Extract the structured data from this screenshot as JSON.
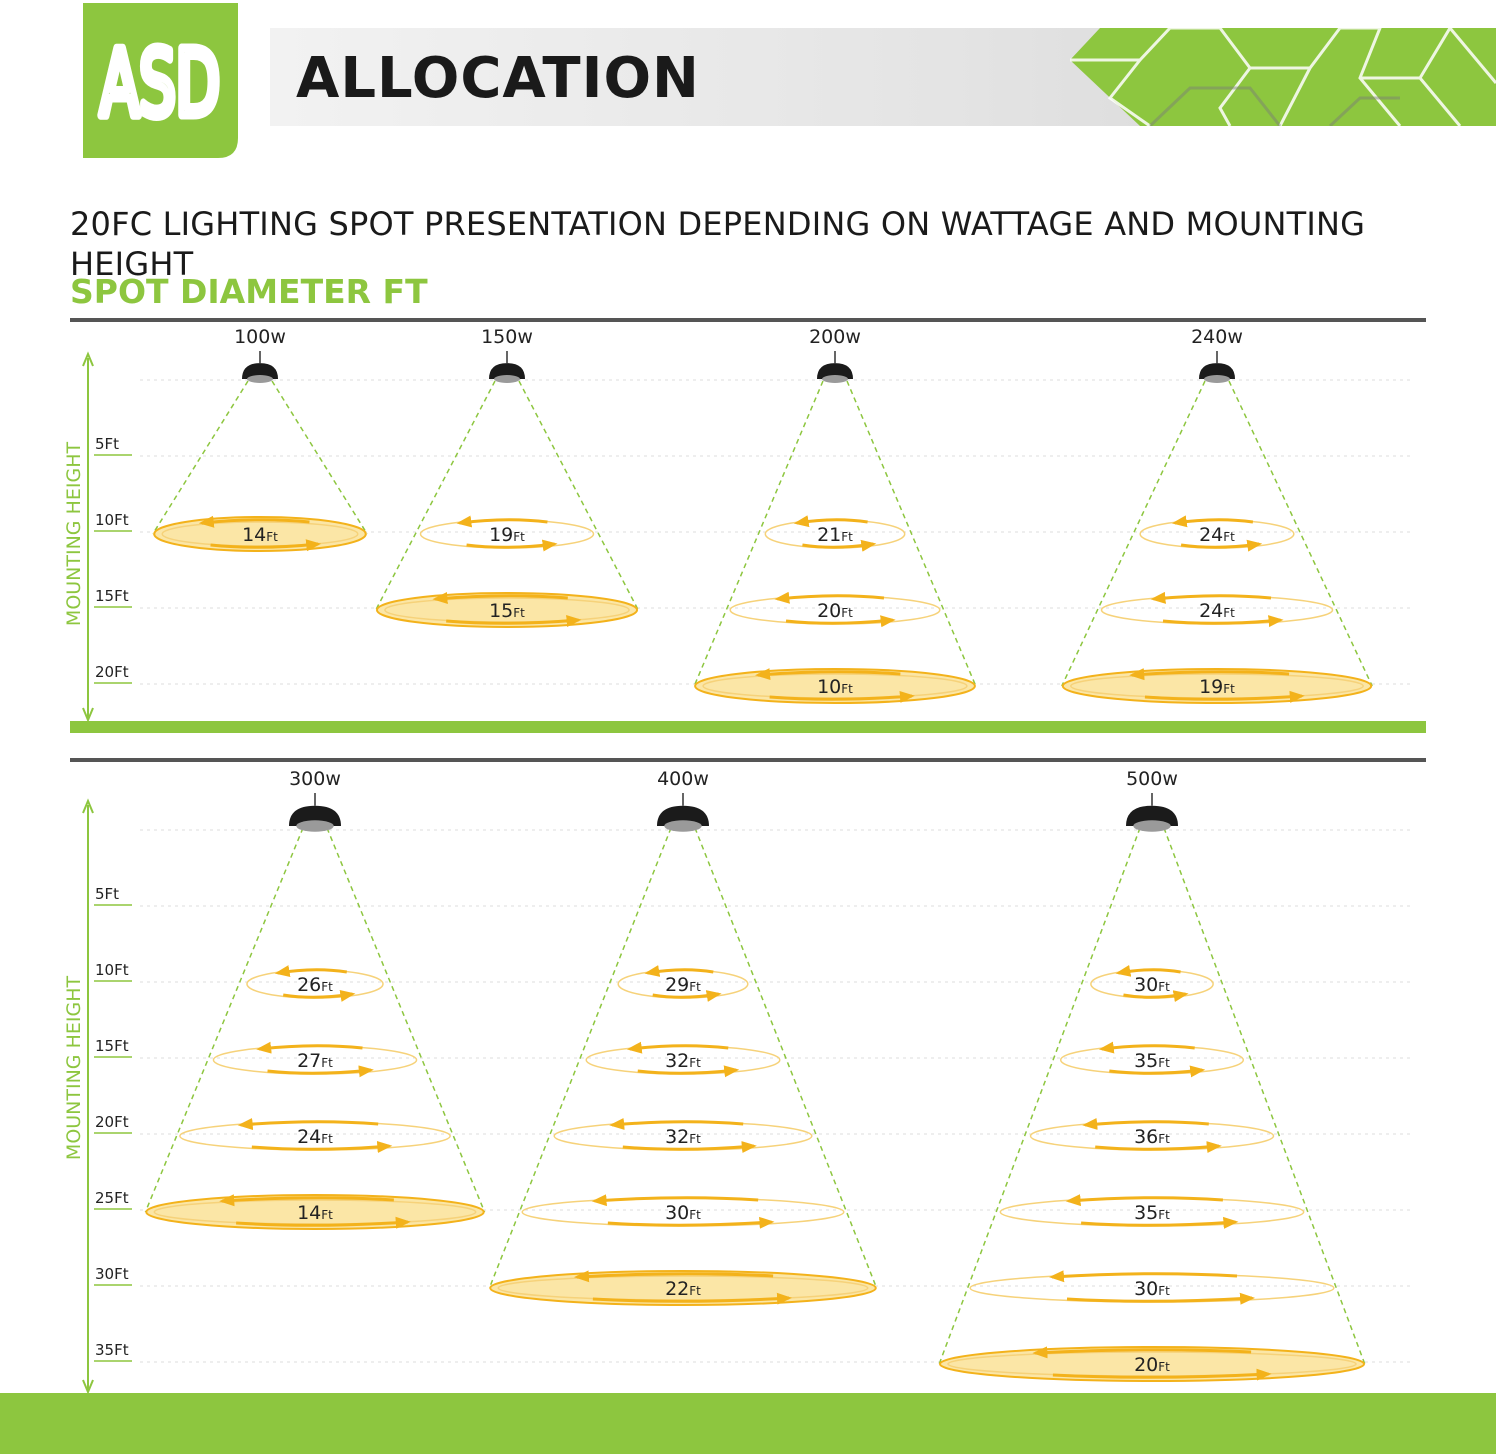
{
  "brand": {
    "logo_text": "ASD",
    "color": "#8dc63f"
  },
  "header": {
    "title": "ALLOCATION"
  },
  "subtitle": "20FC LIGHTING SPOT PRESENTATION DEPENDING  ON WATTAGE AND MOUNTING HEIGHT",
  "section_label": "SPOT DIAMETER FT",
  "unit_suffix": "Ft",
  "colors": {
    "accent": "#8dc63f",
    "spot": "#f3b21b",
    "spot_fill": "#fbe6a6",
    "divider": "#555555"
  },
  "panels": [
    {
      "axis_title": "MOUNTING HEIGHT",
      "height_ticks": [
        "5Ft",
        "10Ft",
        "15Ft",
        "20Ft"
      ],
      "lights": [
        {
          "wattage": "100w",
          "spots": [
            {
              "height": 10,
              "diameter": 14
            }
          ]
        },
        {
          "wattage": "150w",
          "spots": [
            {
              "height": 10,
              "diameter": 19
            },
            {
              "height": 15,
              "diameter": 15
            }
          ]
        },
        {
          "wattage": "200w",
          "spots": [
            {
              "height": 10,
              "diameter": 21
            },
            {
              "height": 15,
              "diameter": 20
            },
            {
              "height": 20,
              "diameter": 10
            }
          ]
        },
        {
          "wattage": "240w",
          "spots": [
            {
              "height": 10,
              "diameter": 24
            },
            {
              "height": 15,
              "diameter": 24
            },
            {
              "height": 20,
              "diameter": 19
            }
          ]
        }
      ]
    },
    {
      "axis_title": "MOUNTING HEIGHT",
      "height_ticks": [
        "5Ft",
        "10Ft",
        "15Ft",
        "20Ft",
        "25Ft",
        "30Ft",
        "35Ft"
      ],
      "lights": [
        {
          "wattage": "300w",
          "spots": [
            {
              "height": 10,
              "diameter": 26
            },
            {
              "height": 15,
              "diameter": 27
            },
            {
              "height": 20,
              "diameter": 24
            },
            {
              "height": 25,
              "diameter": 14
            }
          ]
        },
        {
          "wattage": "400w",
          "spots": [
            {
              "height": 10,
              "diameter": 29
            },
            {
              "height": 15,
              "diameter": 32
            },
            {
              "height": 20,
              "diameter": 32
            },
            {
              "height": 25,
              "diameter": 30
            },
            {
              "height": 30,
              "diameter": 22
            }
          ]
        },
        {
          "wattage": "500w",
          "spots": [
            {
              "height": 10,
              "diameter": 30
            },
            {
              "height": 15,
              "diameter": 35
            },
            {
              "height": 20,
              "diameter": 36
            },
            {
              "height": 25,
              "diameter": 35
            },
            {
              "height": 30,
              "diameter": 30
            },
            {
              "height": 35,
              "diameter": 20
            }
          ]
        }
      ]
    }
  ]
}
